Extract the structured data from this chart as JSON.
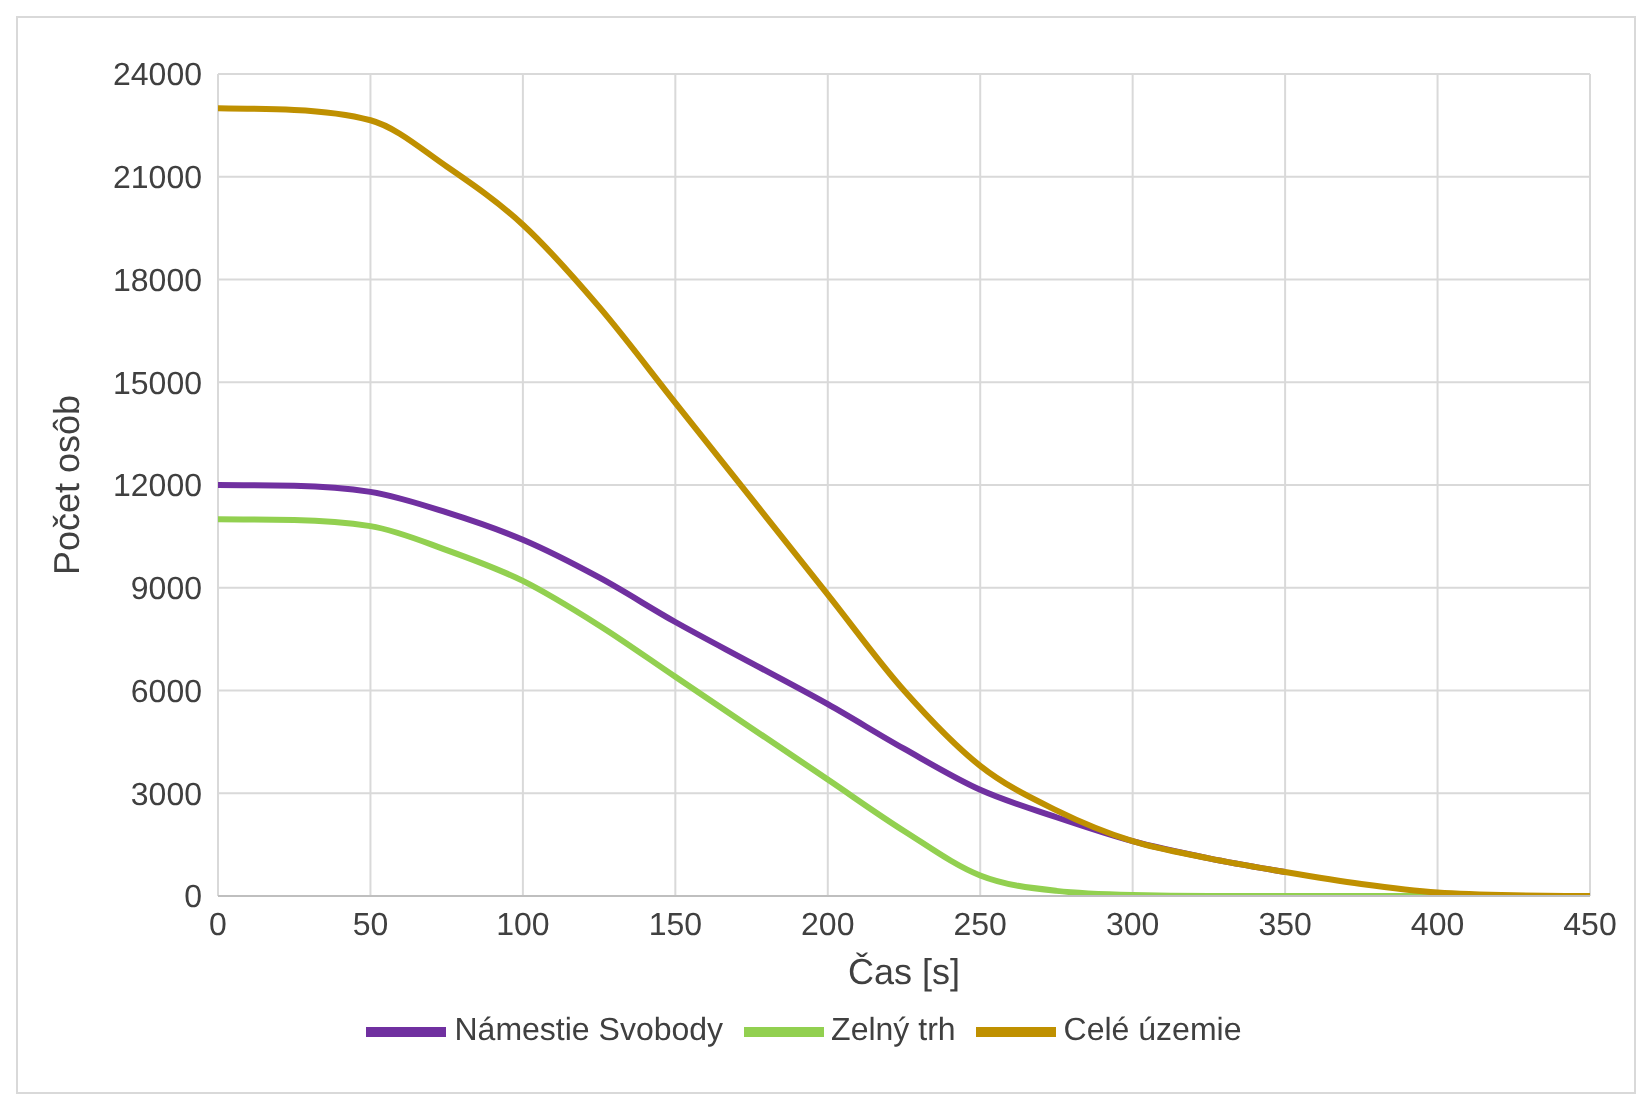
{
  "chart_data": {
    "type": "line",
    "xlabel": "Čas [s]",
    "ylabel": "Počet osôb",
    "x": [
      0,
      25,
      50,
      75,
      100,
      125,
      150,
      175,
      200,
      225,
      250,
      275,
      300,
      325,
      350,
      375,
      400,
      425,
      450
    ],
    "series": [
      {
        "name": "Námestie Svobody",
        "color": "#7030a0",
        "values": [
          12000,
          11980,
          11800,
          11200,
          10400,
          9300,
          8000,
          6800,
          5600,
          4300,
          3100,
          2300,
          1600,
          1100,
          700,
          null,
          null,
          null,
          null
        ]
      },
      {
        "name": "Zelný trh",
        "color": "#92d050",
        "values": [
          11000,
          10980,
          10800,
          10100,
          9200,
          7900,
          6400,
          4900,
          3400,
          1900,
          600,
          150,
          30,
          0,
          0,
          0,
          0,
          0,
          0
        ]
      },
      {
        "name": "Celé územie",
        "color": "#bf9000",
        "values": [
          23000,
          22950,
          22650,
          21300,
          19600,
          17200,
          14400,
          11600,
          8800,
          6000,
          3800,
          2500,
          1600,
          1100,
          700,
          350,
          100,
          20,
          0
        ]
      }
    ],
    "xlim": [
      0,
      450
    ],
    "xticks": [
      0,
      50,
      100,
      150,
      200,
      250,
      300,
      350,
      400,
      450
    ],
    "ylim": [
      0,
      24000
    ],
    "yticks": [
      0,
      3000,
      6000,
      9000,
      12000,
      15000,
      18000,
      21000,
      24000
    ],
    "grid": true,
    "legend": "bottom",
    "marker": "none",
    "line_style": "solid"
  }
}
